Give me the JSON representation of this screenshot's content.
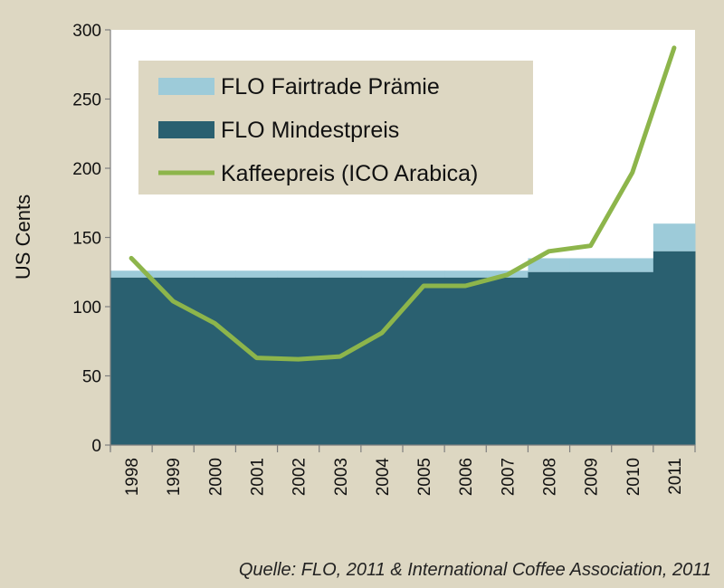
{
  "chart_data": {
    "type": "area",
    "categories": [
      "1998",
      "1999",
      "2000",
      "2001",
      "2002",
      "2003",
      "2004",
      "2005",
      "2006",
      "2007",
      "2008",
      "2009",
      "2010",
      "2011"
    ],
    "ylabel": "US Cents",
    "ylim": [
      0,
      300
    ],
    "yticks": [
      0,
      50,
      100,
      150,
      200,
      250,
      300
    ],
    "legend": {
      "placement": "top-left"
    },
    "grid": false,
    "series": [
      {
        "name": "FLO Mindestpreis",
        "kind": "area",
        "values": [
          121,
          121,
          121,
          121,
          121,
          121,
          121,
          121,
          121,
          121,
          125,
          125,
          125,
          140
        ],
        "color": "#2a6070"
      },
      {
        "name": "FLO Fairtrade Prämie",
        "kind": "stacked-area",
        "values": [
          5,
          5,
          5,
          5,
          5,
          5,
          5,
          5,
          5,
          5,
          10,
          10,
          10,
          20
        ],
        "color": "#9dcbd9"
      },
      {
        "name": "Kaffeepreis (ICO Arabica)",
        "kind": "line",
        "values": [
          135,
          104,
          88,
          63,
          62,
          64,
          81,
          115,
          115,
          123,
          140,
          144,
          197,
          287
        ],
        "color": "#8db54b"
      }
    ],
    "source": "Quelle: FLO, 2011 & International Coffee Association, 2011"
  },
  "colors": {
    "background": "#ddd7c2",
    "plot": "#ffffff",
    "legend_box": "#ddd7c2",
    "axis": "#7f7f7f"
  }
}
